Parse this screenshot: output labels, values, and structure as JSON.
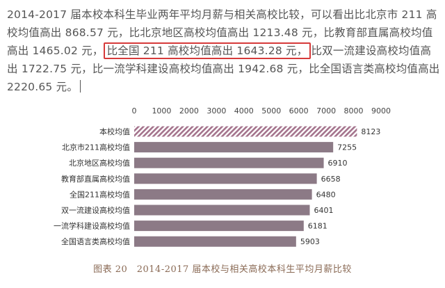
{
  "paragraph": {
    "part1": "2014-2017 届本校本科生毕业两年平均月薪与相关高校比较，可以看出比北京市 211 高校均值高出 868.57 元，比北京地区高校均值高出 1213.48 元，比教育部直属高校均值高出 1465.02 元，",
    "highlight": "比全国 211 高校均值高出 1643.28 元，",
    "part2": "比双一流建设高校均值高出 1722.75 元，比一流学科建设高校均值高出 1942.68 元，比全国语言类高校均值高出 2220.65 元。"
  },
  "chart_data": {
    "type": "bar",
    "orientation": "horizontal",
    "categories": [
      "本校均值",
      "北京市211高校均值",
      "北京地区高校均值",
      "教育部直属高校均值",
      "全国211高校均值",
      "双一流建设高校均值",
      "一流学科建设高校均值",
      "全国语言类高校均值"
    ],
    "values": [
      8123,
      7255,
      6910,
      6658,
      6480,
      6401,
      6181,
      5903
    ],
    "xlim": [
      0,
      9000
    ],
    "xticks": [
      "0",
      "1000",
      "2000",
      "3000",
      "4000",
      "5000",
      "6000",
      "7000",
      "8000",
      "9000"
    ],
    "axis_position": "top",
    "grid": false,
    "bar_color": "#8c7a86",
    "highlight_bar_color": "#a4738c",
    "highlight_bar_pattern": "diagonal-hatch"
  },
  "caption": "图表 20　2014-2017 届本校与相关高校本科生平均月薪比较",
  "colors": {
    "text": "#555555",
    "highlight_border": "#d63a3a",
    "caption": "#8a6a55"
  }
}
